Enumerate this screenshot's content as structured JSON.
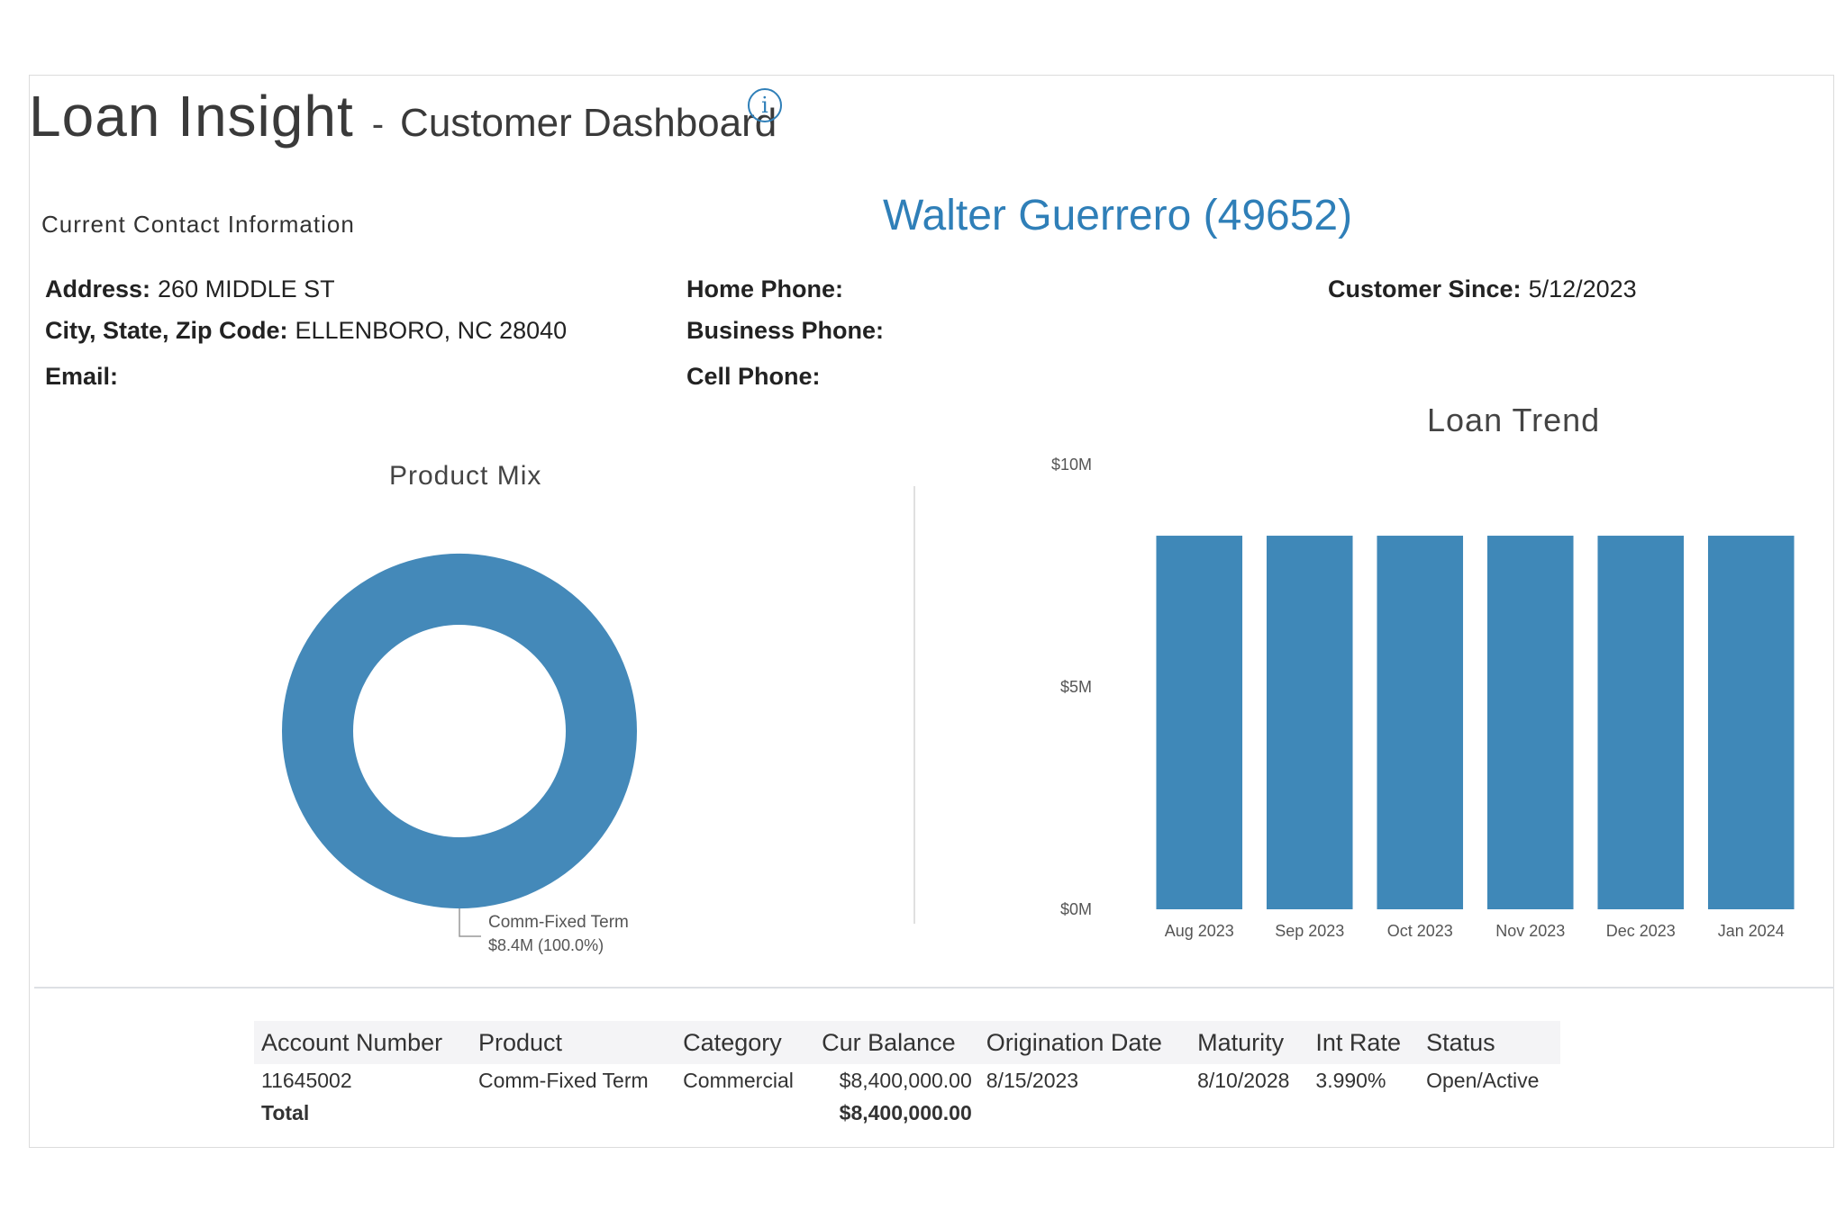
{
  "header": {
    "title": "Loan Insight",
    "separator": "-",
    "subtitle": "Customer Dashboard",
    "info_icon_glyph": "i"
  },
  "contact": {
    "heading": "Current Contact Information",
    "customer_name": "Walter Guerrero (49652)",
    "address_label": "Address:",
    "address_value": "260 MIDDLE ST",
    "city_label": "City, State, Zip Code:",
    "city_value": "ELLENBORO, NC 28040",
    "email_label": "Email:",
    "email_value": "",
    "home_phone_label": "Home Phone:",
    "home_phone_value": "",
    "business_phone_label": "Business Phone:",
    "business_phone_value": "",
    "cell_phone_label": "Cell Phone:",
    "cell_phone_value": "",
    "customer_since_label": "Customer Since:",
    "customer_since_value": "5/12/2023"
  },
  "colors": {
    "accent": "#2f7fb8",
    "bar": "#3f88b8",
    "donut": "#4489b9"
  },
  "chart_data": [
    {
      "type": "pie",
      "title": "Product Mix",
      "slices": [
        {
          "label": "Comm-Fixed Term",
          "value": 8.4,
          "display": "$8.4M (100.0%)",
          "percent": 100.0
        }
      ]
    },
    {
      "type": "bar",
      "title": "Loan Trend",
      "categories": [
        "Aug 2023",
        "Sep 2023",
        "Oct 2023",
        "Nov 2023",
        "Dec 2023",
        "Jan 2024"
      ],
      "values": [
        8.4,
        8.4,
        8.4,
        8.4,
        8.4,
        8.4
      ],
      "yticks": [
        0,
        5,
        10
      ],
      "ytick_labels": [
        "$0M",
        "$5M",
        "$10M"
      ],
      "ylim": [
        0,
        10
      ],
      "xlabel": "",
      "ylabel": ""
    }
  ],
  "table": {
    "columns": [
      "Account Number",
      "Product",
      "Category",
      "Cur Balance",
      "Origination Date",
      "Maturity",
      "Int Rate",
      "Status"
    ],
    "rows": [
      [
        "11645002",
        "Comm-Fixed Term",
        "Commercial",
        "$8,400,000.00",
        "8/15/2023",
        "8/10/2028",
        "3.990%",
        "Open/Active"
      ]
    ],
    "total_label": "Total",
    "total_balance": "$8,400,000.00"
  }
}
